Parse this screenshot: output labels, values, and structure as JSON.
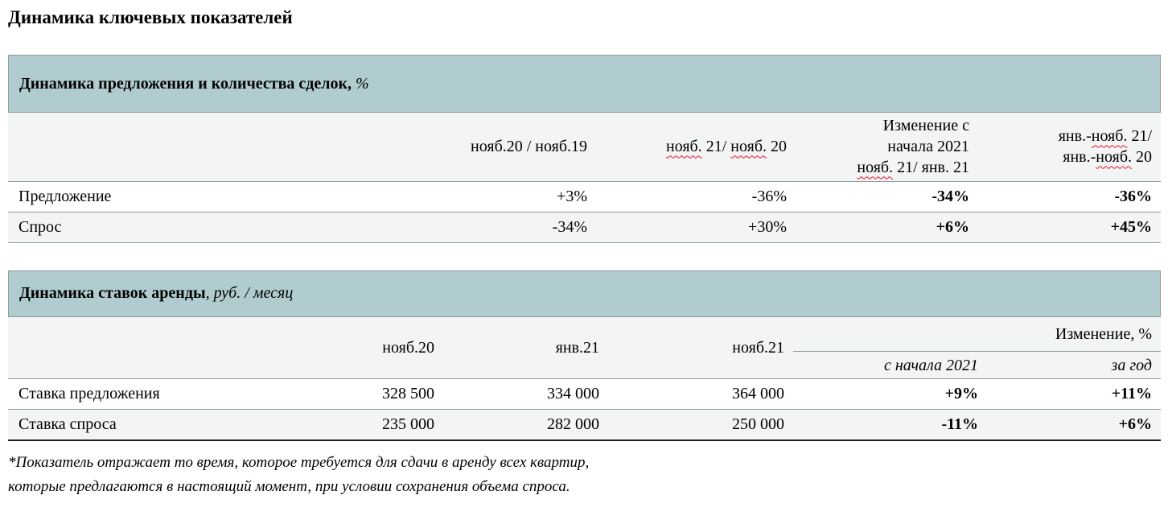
{
  "page_title": "Динамика ключевых показателей",
  "table1": {
    "title": {
      "bold": "Динамика предложения и количества сделок,",
      "italic": " %"
    },
    "col_headers_rich": [
      [
        [
          {
            "t": "нояб.20 / нояб.19"
          }
        ]
      ],
      [
        [
          {
            "t": "нояб.",
            "w": true
          },
          {
            "t": " 21/ "
          },
          {
            "t": "нояб.",
            "w": true
          },
          {
            "t": " 20"
          }
        ]
      ],
      [
        [
          {
            "t": "Изменение с"
          }
        ],
        [
          {
            "t": "начала 2021"
          }
        ],
        [
          {
            "t": "нояб.",
            "w": true
          },
          {
            "t": " 21/ янв. 21"
          }
        ]
      ],
      [
        [
          {
            "t": "янв.-"
          },
          {
            "t": "нояб.",
            "w": true
          },
          {
            "t": " 21/"
          }
        ],
        [
          {
            "t": "янв.-"
          },
          {
            "t": "нояб.",
            "w": true
          },
          {
            "t": " 20"
          }
        ]
      ]
    ],
    "rows": [
      {
        "label": "Предложение",
        "values": [
          "+3%",
          "-36%",
          "-34%",
          "-36%"
        ]
      },
      {
        "label": "Спрос",
        "values": [
          "-34%",
          "+30%",
          "+6%",
          "+45%"
        ]
      }
    ]
  },
  "table2": {
    "title": {
      "bold": "Динамика ставок аренды",
      "italic": ", руб. / месяц"
    },
    "col_headers": [
      "нояб.20",
      "янв.21",
      "нояб.21"
    ],
    "change_group": {
      "label": "Изменение, %",
      "sub": [
        "с начала 2021",
        "за год"
      ]
    },
    "rows": [
      {
        "label": "Ставка предложения",
        "values": [
          "328 500",
          "334 000",
          "364 000"
        ],
        "changes": [
          "+9%",
          "+11%"
        ]
      },
      {
        "label": "Ставка спроса",
        "values": [
          "235 000",
          "282 000",
          "250 000"
        ],
        "changes": [
          "-11%",
          "+6%"
        ]
      }
    ]
  },
  "footnote": {
    "lines": [
      "*Показатель отражает то время, которое требуется для сдачи в аренду всех квартир,",
      "которые предлагаются в настоящий момент, при условии сохранения объема спроса."
    ]
  },
  "colors": {
    "header_teal": "#b0cccf",
    "band_gray": "#f3f4f4",
    "line_gray": "#8f9ca1",
    "line_dark": "#1f1f1f",
    "squiggle_red": "#e8112d"
  }
}
